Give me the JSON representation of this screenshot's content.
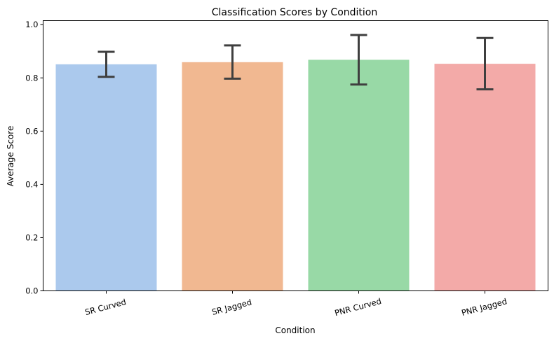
{
  "chart_data": {
    "type": "bar",
    "title": "Classification Scores by Condition",
    "xlabel": "Condition",
    "ylabel": "Average Score",
    "categories": [
      "SR Curved",
      "SR Jagged",
      "PNR Curved",
      "PNR Jagged"
    ],
    "values": [
      0.851,
      0.859,
      0.868,
      0.853
    ],
    "error_low": [
      0.804,
      0.797,
      0.775,
      0.757
    ],
    "error_high": [
      0.898,
      0.922,
      0.961,
      0.95
    ],
    "colors": [
      "#abc9ed",
      "#f1b891",
      "#98d9a6",
      "#f3aaa8"
    ],
    "error_color": "#3f3f3f",
    "ylim": [
      0,
      1.015
    ],
    "yticks": [
      0.0,
      0.2,
      0.4,
      0.6,
      0.8,
      1.0
    ],
    "ytick_labels": [
      "0.0",
      "0.2",
      "0.4",
      "0.6",
      "0.8",
      "1.0"
    ],
    "grid": false,
    "xtick_rotation": 15
  }
}
